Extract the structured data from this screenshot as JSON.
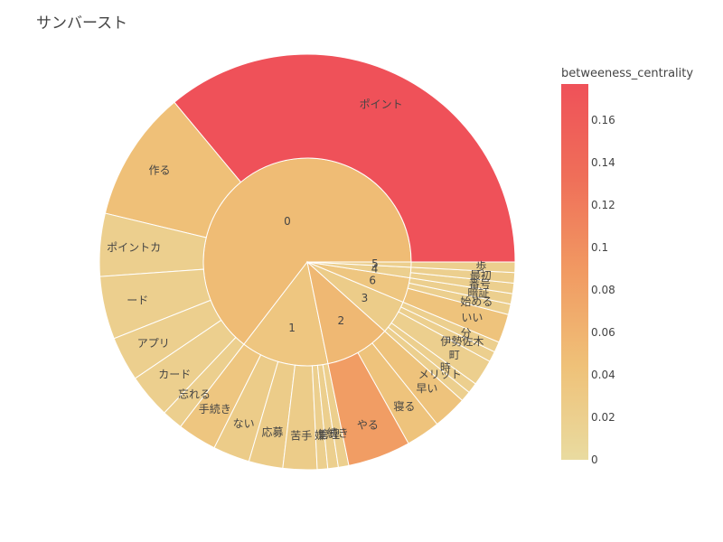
{
  "chart_data": {
    "type": "sunburst",
    "title": "サンバースト",
    "colorbar": {
      "title": "betweeness_centrality",
      "min": 0,
      "max": 0.177,
      "ticks": [
        "0",
        "0.02",
        "0.04",
        "0.06",
        "0.08",
        "0.1",
        "0.12",
        "0.14",
        "0.16"
      ],
      "tick_values": [
        0,
        0.02,
        0.04,
        0.06,
        0.08,
        0.1,
        0.12,
        0.14,
        0.16
      ],
      "colors": [
        "#e9dba0",
        "#efc178",
        "#f19a62",
        "#ef6f59",
        "#ef5159"
      ]
    },
    "groups": [
      {
        "label": "0",
        "color_value": 0.05,
        "children": [
          {
            "label": "ポイント",
            "value": 0.177,
            "color_value": 0.177
          },
          {
            "label": "作る",
            "value": 0.05,
            "color_value": 0.045
          },
          {
            "label": "ポイントカ",
            "value": 0.024,
            "color_value": 0.02
          },
          {
            "label": "ード",
            "value": 0.024,
            "color_value": 0.02
          },
          {
            "label": "アプリ",
            "value": 0.017,
            "color_value": 0.02
          },
          {
            "label": "カード",
            "value": 0.017,
            "color_value": 0.02
          },
          {
            "label": "忘れる",
            "value": 0.008,
            "color_value": 0.02
          }
        ]
      },
      {
        "label": "1",
        "color_value": 0.035,
        "children": [
          {
            "label": "手続き",
            "value": 0.015,
            "color_value": 0.035
          },
          {
            "label": "ない",
            "value": 0.014,
            "color_value": 0.025
          },
          {
            "label": "応募",
            "value": 0.013,
            "color_value": 0.025
          },
          {
            "label": "苦手",
            "value": 0.013,
            "color_value": 0.025
          },
          {
            "label": "嫌",
            "value": 0.004,
            "color_value": 0.02
          },
          {
            "label": "管理",
            "value": 0.004,
            "color_value": 0.02
          },
          {
            "label": "続き",
            "value": 0.004,
            "color_value": 0.02
          }
        ]
      },
      {
        "label": "2",
        "color_value": 0.055,
        "children": [
          {
            "label": "やる",
            "value": 0.024,
            "color_value": 0.085
          },
          {
            "label": "寝る",
            "value": 0.013,
            "color_value": 0.04
          },
          {
            "label": "早い",
            "value": 0.013,
            "color_value": 0.04
          }
        ]
      },
      {
        "label": "3",
        "color_value": 0.025,
        "children": [
          {
            "label": "メリット",
            "value": 0.004,
            "color_value": 0.02
          },
          {
            "label": "時",
            "value": 0.004,
            "color_value": 0.02
          },
          {
            "label": "町",
            "value": 0.01,
            "color_value": 0.02
          },
          {
            "label": "伊勢佐木",
            "value": 0.004,
            "color_value": 0.02
          },
          {
            "label": "分",
            "value": 0.004,
            "color_value": 0.02
          }
        ]
      },
      {
        "label": "6",
        "color_value": 0.035,
        "children": [
          {
            "label": "いい",
            "value": 0.011,
            "color_value": 0.04
          },
          {
            "label": "始める",
            "value": 0.004,
            "color_value": 0.02
          },
          {
            "label": "暗証",
            "value": 0.004,
            "color_value": 0.02
          }
        ]
      },
      {
        "label": "4",
        "color_value": 0.02,
        "children": [
          {
            "label": "番号",
            "value": 0.004,
            "color_value": 0.02
          },
          {
            "label": "最初",
            "value": 0.004,
            "color_value": 0.02
          }
        ]
      },
      {
        "label": "5",
        "color_value": 0.02,
        "children": [
          {
            "label": "歩",
            "value": 0.004,
            "color_value": 0.02
          }
        ]
      }
    ]
  }
}
